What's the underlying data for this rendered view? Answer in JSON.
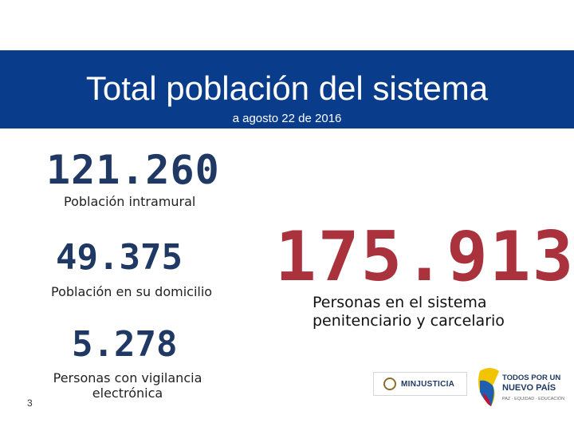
{
  "header": {
    "title": "Total población del sistema",
    "subtitle": "a agosto 22 de 2016"
  },
  "stats": {
    "intramural": {
      "value": "121.260",
      "label": "Población intramural"
    },
    "domicilio": {
      "value": "49.375",
      "label": "Población en su domicilio"
    },
    "vigilancia": {
      "value": "5.278",
      "label": "Personas con vigilancia electrónica"
    }
  },
  "total": {
    "value": "175.913",
    "label": "Personas en el sistema penitenciario y carcelario"
  },
  "page_number": "3",
  "logos": {
    "minjusticia": "MINJUSTICIA",
    "nuevo_pais_line1": "TODOS POR UN",
    "nuevo_pais_line2": "NUEVO PAÍS",
    "nuevo_pais_line3": "PAZ · EQUIDAD · EDUCACIÓN"
  },
  "colors": {
    "banner": "#0a3c8c",
    "stat_blue": "#1f3864",
    "total_red": "#a9323d"
  }
}
